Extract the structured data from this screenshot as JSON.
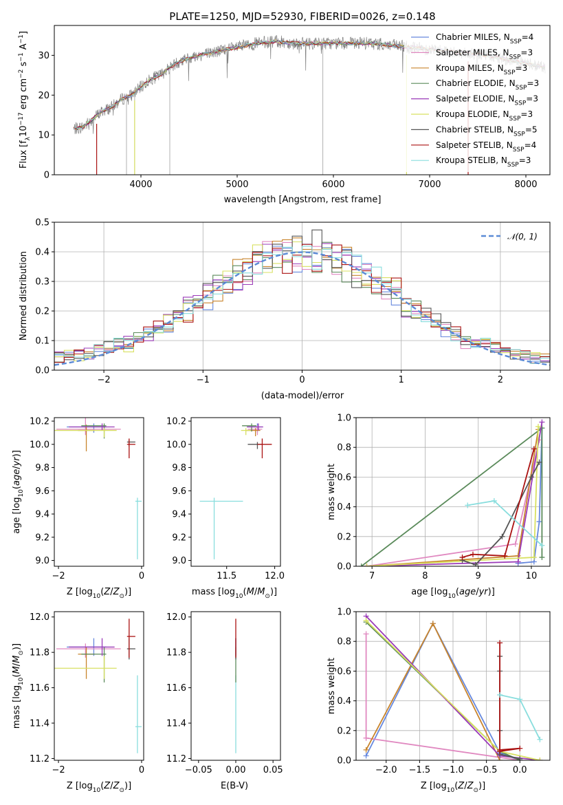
{
  "title": "PLATE=1250, MJD=52930, FIBERID=0026, z=0.148",
  "colors": {
    "Chabrier MILES": "#6688dd",
    "Salpeter MILES": "#e088c0",
    "Kroupa MILES": "#c8842c",
    "Chabrier ELODIE": "#5a8a5a",
    "Salpeter ELODIE": "#9a3ab8",
    "Kroupa ELODIE": "#d8e060",
    "Chabrier STELIB": "#555555",
    "Salpeter STELIB": "#aa1111",
    "Kroupa STELIB": "#88dddd",
    "data": "#808080",
    "gaussian": "#5b8ad6"
  },
  "chart_data": [
    {
      "id": "spectrum",
      "type": "line",
      "xlabel": "wavelength [Angstrom, rest frame]",
      "ylabel": "Flux [f_λ10^-17 erg cm^-2 s^-1 A^-1]",
      "xlim": [
        3100,
        8250
      ],
      "ylim": [
        0,
        37.5
      ],
      "xticks": [
        4000,
        5000,
        6000,
        7000,
        8000
      ],
      "yticks": [
        0,
        10,
        20,
        30
      ],
      "grid": false,
      "legend": "top-right",
      "continuum": [
        [
          3300,
          11.5
        ],
        [
          3400,
          12
        ],
        [
          3500,
          14
        ],
        [
          3600,
          16
        ],
        [
          3700,
          17
        ],
        [
          3800,
          19
        ],
        [
          3900,
          20
        ],
        [
          4000,
          22
        ],
        [
          4100,
          24
        ],
        [
          4200,
          25
        ],
        [
          4300,
          27
        ],
        [
          4400,
          28.5
        ],
        [
          4600,
          30
        ],
        [
          4800,
          31
        ],
        [
          5000,
          32
        ],
        [
          5200,
          33
        ],
        [
          5400,
          33.5
        ],
        [
          5600,
          33
        ],
        [
          5800,
          33
        ],
        [
          6000,
          33
        ],
        [
          6200,
          33
        ],
        [
          6400,
          33
        ],
        [
          6600,
          32.5
        ],
        [
          6800,
          32
        ],
        [
          7000,
          31.5
        ],
        [
          7200,
          31
        ],
        [
          7400,
          30.5
        ],
        [
          7600,
          30
        ],
        [
          7800,
          29
        ],
        [
          8000,
          28
        ],
        [
          8200,
          27
        ]
      ],
      "series": [
        {
          "name": "Chabrier MILES, N_SSP=4"
        },
        {
          "name": "Salpeter MILES, N_SSP=3"
        },
        {
          "name": "Kroupa MILES, N_SSP=3"
        },
        {
          "name": "Chabrier ELODIE, N_SSP=3"
        },
        {
          "name": "Salpeter ELODIE, N_SSP=3"
        },
        {
          "name": "Kroupa ELODIE, N_SSP=3"
        },
        {
          "name": "Chabrier STELIB, N_SSP=5"
        },
        {
          "name": "Salpeter STELIB, N_SSP=4"
        },
        {
          "name": "Kroupa STELIB, N_SSP=3"
        }
      ]
    },
    {
      "id": "residuals",
      "type": "line",
      "xlabel": "(data-model)/error",
      "ylabel": "Normed distribution",
      "xlim": [
        -2.5,
        2.5
      ],
      "ylim": [
        0,
        0.5
      ],
      "xticks": [
        -2,
        -1,
        0,
        1,
        2
      ],
      "yticks": [
        0.0,
        0.1,
        0.2,
        0.3,
        0.4,
        0.5
      ],
      "grid": true,
      "legend": "top-right",
      "legend_label": "𝒩(0, 1)",
      "histogram_bin_width": 0.1
    },
    {
      "id": "age-vs-Z",
      "type": "scatter",
      "xlabel": "Z [log10(Z/Z⊙)]",
      "ylabel": "age [log10(age/yr)]",
      "xlim": [
        -2.1,
        0.05
      ],
      "ylim": [
        8.95,
        10.23
      ],
      "xticks": [
        -2,
        0
      ],
      "yticks": [
        9.0,
        9.2,
        9.4,
        9.6,
        9.8,
        10.0,
        10.2
      ],
      "grid": false,
      "points": [
        {
          "model": "Chabrier MILES",
          "x": -1.15,
          "y": 10.15,
          "xerr": [
            0.65,
            0.3
          ],
          "yerr": [
            0.05,
            0.03
          ]
        },
        {
          "model": "Salpeter MILES",
          "x": -1.35,
          "y": 10.13,
          "xerr": [
            0.7,
            0.85
          ],
          "yerr": [
            0.05,
            0.3
          ]
        },
        {
          "model": "Kroupa MILES",
          "x": -1.33,
          "y": 10.12,
          "xerr": [
            0.2,
            0.2
          ],
          "yerr": [
            0.18,
            0.05
          ]
        },
        {
          "model": "Chabrier ELODIE",
          "x": -0.9,
          "y": 10.16,
          "xerr": [
            0.55,
            0.05
          ],
          "yerr": [
            0.11,
            0.02
          ]
        },
        {
          "model": "Salpeter ELODIE",
          "x": -0.95,
          "y": 10.15,
          "xerr": [
            0.8,
            0.3
          ],
          "yerr": [
            0.03,
            0.03
          ]
        },
        {
          "model": "Kroupa ELODIE",
          "x": -0.9,
          "y": 10.12,
          "xerr": [
            1.2,
            0.3
          ],
          "yerr": [
            0.06,
            0.02
          ]
        },
        {
          "model": "Chabrier STELIB",
          "x": -0.3,
          "y": 10.02,
          "xerr": [
            0.05,
            0.15
          ],
          "yerr": [
            0.04,
            0.02
          ]
        },
        {
          "model": "Salpeter STELIB",
          "x": -0.3,
          "y": 10.0,
          "xerr": [
            0.05,
            0.15
          ],
          "yerr": [
            0.12,
            0.05
          ]
        },
        {
          "model": "Kroupa STELIB",
          "x": -0.1,
          "y": 9.51,
          "xerr": [
            0.05,
            0.1
          ],
          "yerr": [
            0.5,
            0.03
          ]
        }
      ]
    },
    {
      "id": "age-vs-mass",
      "type": "scatter",
      "xlabel": "mass [log10(M/M⊙)]",
      "ylabel": "",
      "xlim": [
        11.13,
        12.06
      ],
      "ylim": [
        8.95,
        10.23
      ],
      "xticks": [
        11.5,
        12.0
      ],
      "yticks": [
        9.0,
        9.2,
        9.4,
        9.6,
        9.8,
        10.0,
        10.2
      ],
      "grid": false,
      "points": [
        {
          "model": "Chabrier MILES",
          "x": 11.82,
          "y": 10.15,
          "xerr": [
            0.1,
            0.05
          ],
          "yerr": [
            0.05,
            0.03
          ]
        },
        {
          "model": "Salpeter MILES",
          "x": 11.82,
          "y": 10.13,
          "xerr": [
            0.1,
            0.05
          ],
          "yerr": [
            0.05,
            0.03
          ]
        },
        {
          "model": "Kroupa MILES",
          "x": 11.8,
          "y": 10.12,
          "xerr": [
            0.1,
            0.05
          ],
          "yerr": [
            0.05,
            0.02
          ]
        },
        {
          "model": "Chabrier ELODIE",
          "x": 11.76,
          "y": 10.16,
          "xerr": [
            0.1,
            0.05
          ],
          "yerr": [
            0.05,
            0.02
          ]
        },
        {
          "model": "Salpeter ELODIE",
          "x": 11.83,
          "y": 10.15,
          "xerr": [
            0.12,
            0.05
          ],
          "yerr": [
            0.03,
            0.03
          ]
        },
        {
          "model": "Kroupa ELODIE",
          "x": 11.7,
          "y": 10.12,
          "xerr": [
            0.05,
            0.05
          ],
          "yerr": [
            0.04,
            0.02
          ]
        },
        {
          "model": "Chabrier STELIB",
          "x": 11.82,
          "y": 10.0,
          "xerr": [
            0.1,
            0.05
          ],
          "yerr": [
            0.04,
            0.02
          ]
        },
        {
          "model": "Salpeter STELIB",
          "x": 11.87,
          "y": 10.0,
          "xerr": [
            0.05,
            0.1
          ],
          "yerr": [
            0.12,
            0.05
          ]
        },
        {
          "model": "Kroupa STELIB",
          "x": 11.37,
          "y": 9.51,
          "xerr": [
            0.15,
            0.3
          ],
          "yerr": [
            0.5,
            0.03
          ]
        }
      ]
    },
    {
      "id": "weight-vs-age",
      "type": "line",
      "xlabel": "age [log10(age/yr)]",
      "ylabel": "mass weight",
      "xlim": [
        6.7,
        10.35
      ],
      "ylim": [
        0,
        1.0
      ],
      "xticks": [
        7,
        8,
        9,
        10
      ],
      "yticks": [
        0.0,
        0.2,
        0.4,
        0.6,
        0.8,
        1.0
      ],
      "grid": true,
      "series": [
        {
          "model": "Chabrier MILES",
          "x": [
            9.75,
            10.05,
            10.15,
            10.2
          ],
          "y": [
            0.02,
            0.03,
            0.3,
            0.93
          ]
        },
        {
          "model": "Salpeter MILES",
          "x": [
            6.9,
            9.7,
            10.15
          ],
          "y": [
            0.0,
            0.15,
            0.85
          ]
        },
        {
          "model": "Kroupa MILES",
          "x": [
            6.9,
            9.75,
            10.13
          ],
          "y": [
            0.0,
            0.07,
            0.92
          ]
        },
        {
          "model": "Chabrier ELODIE",
          "x": [
            6.8,
            10.2,
            10.2
          ],
          "y": [
            0.0,
            0.93,
            0.06
          ]
        },
        {
          "model": "Salpeter ELODIE",
          "x": [
            6.9,
            9.75,
            10.2
          ],
          "y": [
            0.0,
            0.03,
            0.97
          ]
        },
        {
          "model": "Kroupa ELODIE",
          "x": [
            6.9,
            10.05,
            10.13
          ],
          "y": [
            0.0,
            0.06,
            0.94
          ]
        },
        {
          "model": "Chabrier STELIB",
          "x": [
            8.7,
            8.95,
            9.45,
            10.0,
            10.15
          ],
          "y": [
            0.04,
            0.01,
            0.2,
            0.6,
            0.7
          ]
        },
        {
          "model": "Salpeter STELIB",
          "x": [
            8.7,
            8.9,
            9.5,
            10.05
          ],
          "y": [
            0.06,
            0.08,
            0.07,
            0.79
          ]
        },
        {
          "model": "Kroupa STELIB",
          "x": [
            8.8,
            9.3,
            10.2
          ],
          "y": [
            0.41,
            0.44,
            0.14
          ]
        }
      ]
    },
    {
      "id": "mass-vs-Z",
      "type": "scatter",
      "xlabel": "Z [log10(Z/Z⊙)]",
      "ylabel": "mass [log10(M/M⊙)]",
      "xlim": [
        -2.1,
        0.05
      ],
      "ylim": [
        11.19,
        12.03
      ],
      "xticks": [
        -2,
        0
      ],
      "yticks": [
        11.2,
        11.4,
        11.6,
        11.8,
        12.0
      ],
      "grid": false,
      "points": [
        {
          "model": "Chabrier MILES",
          "x": -1.15,
          "y": 11.83,
          "xerr": [
            0.65,
            0.3
          ],
          "yerr": [
            0.05,
            0.05
          ]
        },
        {
          "model": "Salpeter MILES",
          "x": -1.35,
          "y": 11.82,
          "xerr": [
            0.7,
            0.85
          ],
          "yerr": [
            0.05,
            0.03
          ]
        },
        {
          "model": "Kroupa MILES",
          "x": -1.33,
          "y": 11.79,
          "xerr": [
            0.2,
            0.2
          ],
          "yerr": [
            0.14,
            0.04
          ]
        },
        {
          "model": "Chabrier ELODIE",
          "x": -0.9,
          "y": 11.79,
          "xerr": [
            0.55,
            0.05
          ],
          "yerr": [
            0.16,
            0.04
          ]
        },
        {
          "model": "Salpeter ELODIE",
          "x": -0.95,
          "y": 11.83,
          "xerr": [
            0.8,
            0.3
          ],
          "yerr": [
            0.05,
            0.05
          ]
        },
        {
          "model": "Kroupa ELODIE",
          "x": -0.9,
          "y": 11.71,
          "xerr": [
            1.2,
            0.3
          ],
          "yerr": [
            0.06,
            0.07
          ]
        },
        {
          "model": "Chabrier STELIB",
          "x": -0.3,
          "y": 11.82,
          "xerr": [
            0.05,
            0.15
          ],
          "yerr": [
            0.06,
            0.06
          ]
        },
        {
          "model": "Salpeter STELIB",
          "x": -0.3,
          "y": 11.89,
          "xerr": [
            0.05,
            0.15
          ],
          "yerr": [
            0.12,
            0.1
          ]
        },
        {
          "model": "Kroupa STELIB",
          "x": -0.1,
          "y": 11.38,
          "xerr": [
            0.05,
            0.1
          ],
          "yerr": [
            0.15,
            0.29
          ]
        }
      ]
    },
    {
      "id": "mass-vs-EBV",
      "type": "scatter",
      "xlabel": "E(B-V)",
      "ylabel": "",
      "xlim": [
        -0.06,
        0.06
      ],
      "ylim": [
        11.19,
        12.03
      ],
      "xticks": [
        -0.05,
        0.0,
        0.05
      ],
      "yticks": [
        11.2,
        11.4,
        11.6,
        11.8,
        12.0
      ],
      "grid": false,
      "points": [
        {
          "model": "Kroupa STELIB",
          "x": 0,
          "y": 11.38,
          "yerr": [
            0.15,
            0.29
          ]
        },
        {
          "model": "Chabrier ELODIE",
          "x": 0,
          "y": 11.79,
          "yerr": [
            0.16,
            0.04
          ]
        },
        {
          "model": "Salpeter ELODIE",
          "x": 0,
          "y": 11.83,
          "yerr": [
            0.05,
            0.05
          ]
        },
        {
          "model": "Chabrier STELIB",
          "x": 0,
          "y": 11.82,
          "yerr": [
            0.06,
            0.06
          ]
        },
        {
          "model": "Salpeter STELIB",
          "x": 0,
          "y": 11.89,
          "yerr": [
            0.12,
            0.1
          ]
        }
      ]
    },
    {
      "id": "weight-vs-Z",
      "type": "line",
      "xlabel": "Z [log10(Z/Z⊙)]",
      "ylabel": "mass weight",
      "xlim": [
        -2.45,
        0.45
      ],
      "ylim": [
        0,
        1.0
      ],
      "xticks": [
        -2.0,
        -1.5,
        -1.0,
        -0.5,
        0.0
      ],
      "yticks": [
        0.0,
        0.2,
        0.4,
        0.6,
        0.8,
        1.0
      ],
      "grid": true,
      "series": [
        {
          "model": "Chabrier MILES",
          "x": [
            -2.3,
            -1.3,
            -0.3,
            0.0
          ],
          "y": [
            0.03,
            0.92,
            0.05,
            0.0
          ]
        },
        {
          "model": "Salpeter MILES",
          "x": [
            -2.3,
            -2.3,
            0.0,
            -2.3
          ],
          "y": [
            0.85,
            0.15,
            0.0,
            0.15
          ]
        },
        {
          "model": "Kroupa MILES",
          "x": [
            -2.3,
            -1.3,
            -0.3
          ],
          "y": [
            0.07,
            0.92,
            0.0
          ]
        },
        {
          "model": "Chabrier ELODIE",
          "x": [
            -2.3,
            -0.3,
            0.0
          ],
          "y": [
            0.93,
            0.06,
            0.0
          ]
        },
        {
          "model": "Salpeter ELODIE",
          "x": [
            -2.3,
            -0.3,
            0.3
          ],
          "y": [
            0.97,
            0.03,
            0.0
          ]
        },
        {
          "model": "Kroupa ELODIE",
          "x": [
            -2.3,
            -0.3,
            0.3
          ],
          "y": [
            0.94,
            0.06,
            0.0
          ]
        },
        {
          "model": "Chabrier STELIB",
          "x": [
            -0.3,
            -0.3,
            -0.3,
            -0.3,
            0.0
          ],
          "y": [
            0.7,
            0.2,
            0.6,
            0.04,
            0.01
          ]
        },
        {
          "model": "Salpeter STELIB",
          "x": [
            -0.3,
            -0.3,
            0.0,
            -0.3
          ],
          "y": [
            0.79,
            0.07,
            0.08,
            0.06
          ]
        },
        {
          "model": "Kroupa STELIB",
          "x": [
            -0.3,
            0.0,
            0.3
          ],
          "y": [
            0.44,
            0.41,
            0.14
          ]
        }
      ]
    }
  ]
}
